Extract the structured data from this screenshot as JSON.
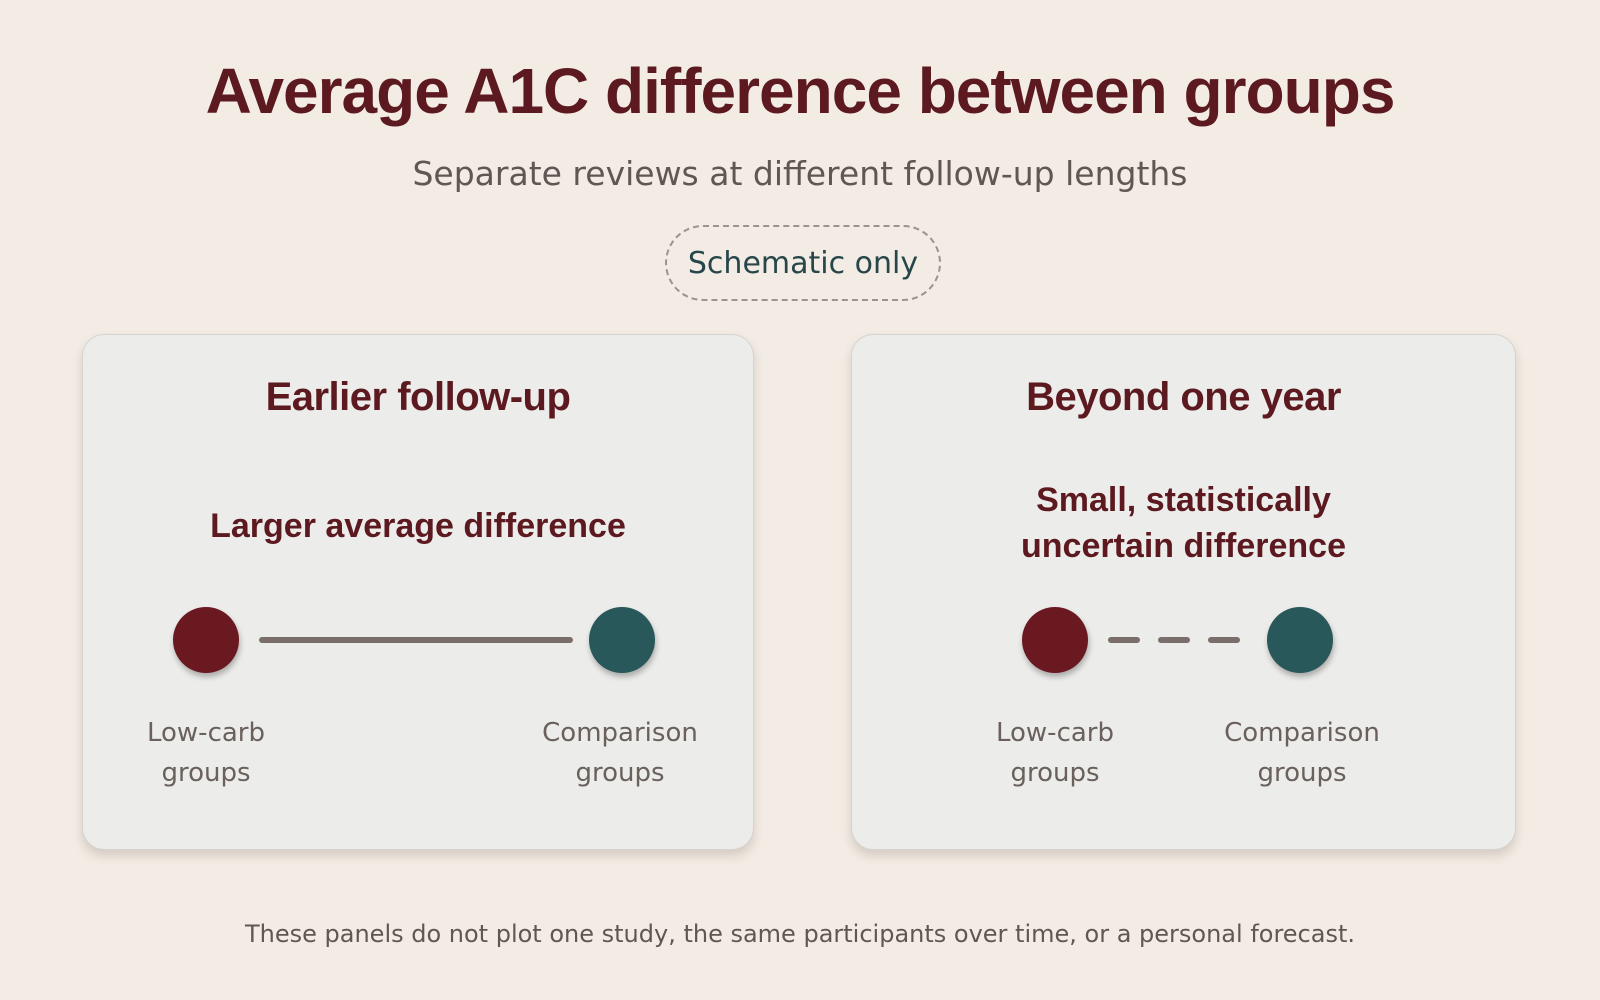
{
  "header": {
    "title": "Average A1C difference between groups",
    "subtitle": "Separate reviews at different follow-up lengths",
    "badge": "Schematic only"
  },
  "panels": [
    {
      "title": "Earlier follow-up",
      "note_lines": [
        "Larger average difference"
      ],
      "connector": "solid",
      "left_group": {
        "lines": [
          "Low-carb",
          "groups"
        ]
      },
      "right_group": {
        "lines": [
          "Comparison",
          "groups"
        ]
      }
    },
    {
      "title": "Beyond one year",
      "note_lines": [
        "Small, statistically",
        "uncertain difference"
      ],
      "connector": "dashed",
      "left_group": {
        "lines": [
          "Low-carb",
          "groups"
        ]
      },
      "right_group": {
        "lines": [
          "Comparison",
          "groups"
        ]
      }
    }
  ],
  "colors": {
    "background": "#f3ece4",
    "accent": "#5c1a20",
    "low_carb": "#6b1920",
    "comparison": "#29585a",
    "connector": "#7a6e6a"
  },
  "footnote": "These panels do not plot one study, the same participants over time, or a personal forecast."
}
